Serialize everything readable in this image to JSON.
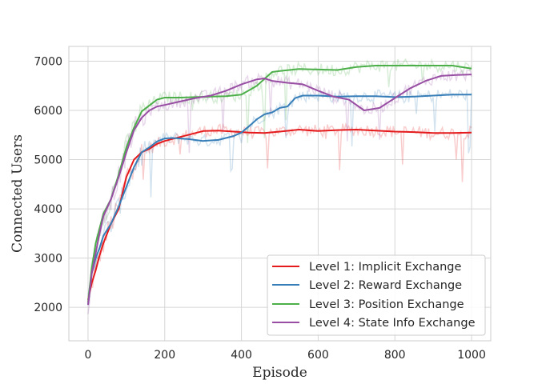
{
  "chart_data": {
    "type": "line",
    "xlabel": "Episode",
    "ylabel": "Connected Users",
    "xlim": [
      -50,
      1050
    ],
    "ylim": [
      1320,
      7300
    ],
    "xticks": [
      0,
      200,
      400,
      600,
      800,
      1000
    ],
    "yticks": [
      2000,
      3000,
      4000,
      5000,
      6000,
      7000
    ],
    "grid": true,
    "legend_position": "bottom-right",
    "series": [
      {
        "name": "Level 1: Implicit Exchange",
        "color": "#e41a1c",
        "x": [
          0,
          10,
          20,
          30,
          40,
          60,
          80,
          100,
          120,
          140,
          160,
          180,
          200,
          220,
          260,
          300,
          340,
          380,
          420,
          460,
          500,
          550,
          600,
          650,
          700,
          750,
          800,
          850,
          900,
          950,
          1000
        ],
        "values": [
          2150,
          2500,
          2750,
          3050,
          3300,
          3700,
          4000,
          4650,
          5000,
          5150,
          5220,
          5320,
          5380,
          5420,
          5500,
          5580,
          5590,
          5570,
          5550,
          5540,
          5570,
          5610,
          5580,
          5600,
          5610,
          5590,
          5570,
          5560,
          5540,
          5540,
          5550
        ]
      },
      {
        "name": "Level 2: Reward Exchange",
        "color": "#377eb8",
        "x": [
          0,
          10,
          20,
          30,
          40,
          60,
          80,
          100,
          120,
          140,
          160,
          180,
          200,
          220,
          260,
          300,
          340,
          380,
          400,
          420,
          440,
          460,
          480,
          500,
          520,
          540,
          560,
          600,
          650,
          700,
          750,
          800,
          850,
          900,
          950,
          1000
        ],
        "values": [
          2050,
          2700,
          3000,
          3200,
          3450,
          3700,
          4050,
          4450,
          4850,
          5150,
          5250,
          5370,
          5430,
          5440,
          5420,
          5380,
          5400,
          5480,
          5550,
          5680,
          5820,
          5920,
          5960,
          6050,
          6080,
          6250,
          6300,
          6300,
          6280,
          6290,
          6290,
          6270,
          6280,
          6300,
          6320,
          6320
        ]
      },
      {
        "name": "Level 3: Position Exchange",
        "color": "#4daf4a",
        "x": [
          0,
          10,
          20,
          30,
          40,
          60,
          80,
          100,
          120,
          140,
          160,
          180,
          200,
          240,
          280,
          320,
          360,
          400,
          440,
          480,
          500,
          550,
          600,
          650,
          700,
          750,
          800,
          850,
          900,
          950,
          1000
        ],
        "values": [
          2100,
          2800,
          3300,
          3600,
          3900,
          4200,
          4700,
          5250,
          5650,
          5980,
          6100,
          6220,
          6260,
          6260,
          6270,
          6280,
          6290,
          6320,
          6500,
          6780,
          6800,
          6840,
          6830,
          6820,
          6880,
          6910,
          6910,
          6910,
          6910,
          6910,
          6850
        ]
      },
      {
        "name": "Level 4: State Info Exchange",
        "color": "#984ea3",
        "x": [
          0,
          10,
          20,
          30,
          40,
          60,
          80,
          100,
          120,
          140,
          160,
          180,
          200,
          240,
          280,
          320,
          360,
          400,
          440,
          460,
          480,
          520,
          560,
          600,
          640,
          680,
          720,
          760,
          800,
          840,
          880,
          920,
          960,
          1000
        ],
        "values": [
          2050,
          2700,
          3100,
          3500,
          3850,
          4200,
          4650,
          5150,
          5600,
          5850,
          6000,
          6080,
          6110,
          6180,
          6250,
          6300,
          6400,
          6530,
          6630,
          6650,
          6600,
          6560,
          6530,
          6400,
          6280,
          6220,
          6000,
          6050,
          6250,
          6450,
          6600,
          6700,
          6720,
          6730
        ]
      }
    ]
  }
}
